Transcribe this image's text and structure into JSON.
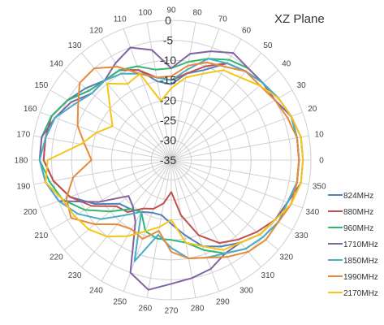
{
  "chart_data": {
    "type": "line",
    "subtype": "polar",
    "title": "XZ  Plane",
    "r_range": [
      -35,
      0
    ],
    "r_ticks": [
      {
        "value": 0,
        "label": "0"
      },
      {
        "value": -5,
        "label": "-5"
      },
      {
        "value": -10,
        "label": "-10"
      },
      {
        "value": -15,
        "label": "-15"
      },
      {
        "value": -20,
        "label": "-20"
      },
      {
        "value": -25,
        "label": "-25"
      },
      {
        "value": -30,
        "label": "-30"
      },
      {
        "value": -35,
        "label": "-35"
      }
    ],
    "angle_ticks": [
      {
        "angle": 0,
        "label": "0"
      },
      {
        "angle": 10,
        "label": "10"
      },
      {
        "angle": 20,
        "label": "20"
      },
      {
        "angle": 30,
        "label": "30"
      },
      {
        "angle": 40,
        "label": "40"
      },
      {
        "angle": 50,
        "label": "50"
      },
      {
        "angle": 60,
        "label": "60"
      },
      {
        "angle": 70,
        "label": "70"
      },
      {
        "angle": 80,
        "label": "80"
      },
      {
        "angle": 90,
        "label": "90"
      },
      {
        "angle": 100,
        "label": "100"
      },
      {
        "angle": 110,
        "label": "110"
      },
      {
        "angle": 120,
        "label": "120"
      },
      {
        "angle": 130,
        "label": "130"
      },
      {
        "angle": 140,
        "label": "140"
      },
      {
        "angle": 150,
        "label": "150"
      },
      {
        "angle": 160,
        "label": "160"
      },
      {
        "angle": 170,
        "label": "170"
      },
      {
        "angle": 180,
        "label": "180"
      },
      {
        "angle": 190,
        "label": "190"
      },
      {
        "angle": 200,
        "label": "200"
      },
      {
        "angle": 210,
        "label": "210"
      },
      {
        "angle": 220,
        "label": "220"
      },
      {
        "angle": 230,
        "label": "230"
      },
      {
        "angle": 240,
        "label": "240"
      },
      {
        "angle": 250,
        "label": "250"
      },
      {
        "angle": 260,
        "label": "260"
      },
      {
        "angle": 270,
        "label": "270"
      },
      {
        "angle": 280,
        "label": "280"
      },
      {
        "angle": 290,
        "label": "290"
      },
      {
        "angle": 300,
        "label": "300"
      },
      {
        "angle": 310,
        "label": "310"
      },
      {
        "angle": 320,
        "label": "320"
      },
      {
        "angle": 330,
        "label": "330"
      },
      {
        "angle": 340,
        "label": "340"
      },
      {
        "angle": 350,
        "label": "350"
      }
    ],
    "angle_step": 10,
    "angle_direction": "counterclockwise",
    "zero_angle": "east",
    "grid": true,
    "legend_position": "right-bottom",
    "series": [
      {
        "name": "824MHz",
        "color": "#4f81bd",
        "values": [
          -3,
          -3,
          -3,
          -5,
          -5,
          -6,
          -7,
          -11,
          -13,
          -16,
          -15,
          -11,
          -9,
          -9,
          -7,
          -5,
          -3,
          -3,
          -3,
          -5,
          -8,
          -13,
          -18,
          -19,
          -20,
          -21,
          -21,
          -19,
          -16,
          -12,
          -10,
          -8,
          -6,
          -5,
          -4,
          -3
        ]
      },
      {
        "name": "880MHz",
        "color": "#c0504d",
        "values": [
          -3,
          -3,
          -3,
          -4,
          -5,
          -6,
          -7,
          -10,
          -13,
          -15,
          -14,
          -11,
          -9,
          -9,
          -8,
          -5,
          -3,
          -3,
          -3,
          -5,
          -8,
          -12,
          -17,
          -18,
          -21,
          -22,
          -24,
          -27,
          -21,
          -15,
          -11,
          -9,
          -7,
          -5,
          -4,
          -3
        ]
      },
      {
        "name": "960MHz",
        "color": "#2eb872",
        "values": [
          -3,
          -3,
          -3,
          -4,
          -5,
          -5,
          -6,
          -8,
          -10,
          -12,
          -12,
          -10,
          -9,
          -9,
          -8,
          -5,
          -3,
          -2,
          -2,
          -4,
          -6,
          -10,
          -15,
          -19,
          -20,
          -16,
          -15,
          -15,
          -14,
          -11,
          -8,
          -6,
          -5,
          -4,
          -3,
          -3
        ]
      },
      {
        "name": "1710MHz",
        "color": "#8064a2",
        "values": [
          -2,
          -2,
          -3,
          -5,
          -5,
          -5,
          -4,
          -6,
          -8,
          -12,
          -7,
          -5,
          -7,
          -9,
          -9,
          -6,
          -4,
          -2,
          -2,
          -3,
          -5,
          -14,
          -21,
          -20,
          -17,
          -5,
          -2,
          -4,
          -5,
          -6,
          -8,
          -8,
          -6,
          -5,
          -4,
          -2
        ]
      },
      {
        "name": "1850MHz",
        "color": "#4bacc6",
        "values": [
          -3,
          -3,
          -3,
          -4,
          -5,
          -6,
          -7,
          -8,
          -12,
          -15,
          -14,
          -12,
          -10,
          -9,
          -9,
          -7,
          -4,
          -3,
          -2,
          -3,
          -5,
          -8,
          -12,
          -17,
          -20,
          -8,
          -16,
          -13,
          -10,
          -9,
          -8,
          -6,
          -5,
          -4,
          -4,
          -3
        ]
      },
      {
        "name": "1990MHz",
        "color": "#e8893a",
        "values": [
          -3,
          -3,
          -4,
          -5,
          -6,
          -6,
          -8,
          -9,
          -11,
          -14,
          -14,
          -12,
          -8,
          -5,
          -5,
          -8,
          -10,
          -13,
          -15,
          -10,
          -7,
          -6,
          -10,
          -14,
          -15,
          -14,
          -17,
          -12,
          -10,
          -9,
          -7,
          -5,
          -4,
          -4,
          -3,
          -3
        ]
      },
      {
        "name": "2170MHz",
        "color": "#f5c518",
        "values": [
          -2,
          -2,
          -3,
          -4,
          -6,
          -8,
          -9,
          -12,
          -14,
          -17,
          -20,
          -12,
          -13,
          -10,
          -15,
          -18,
          -15,
          -12,
          -4,
          -3,
          -6,
          -7,
          -8,
          -10,
          -13,
          -16,
          -18,
          -20,
          -14,
          -12,
          -9,
          -8,
          -6,
          -5,
          -3,
          -2
        ]
      }
    ]
  }
}
